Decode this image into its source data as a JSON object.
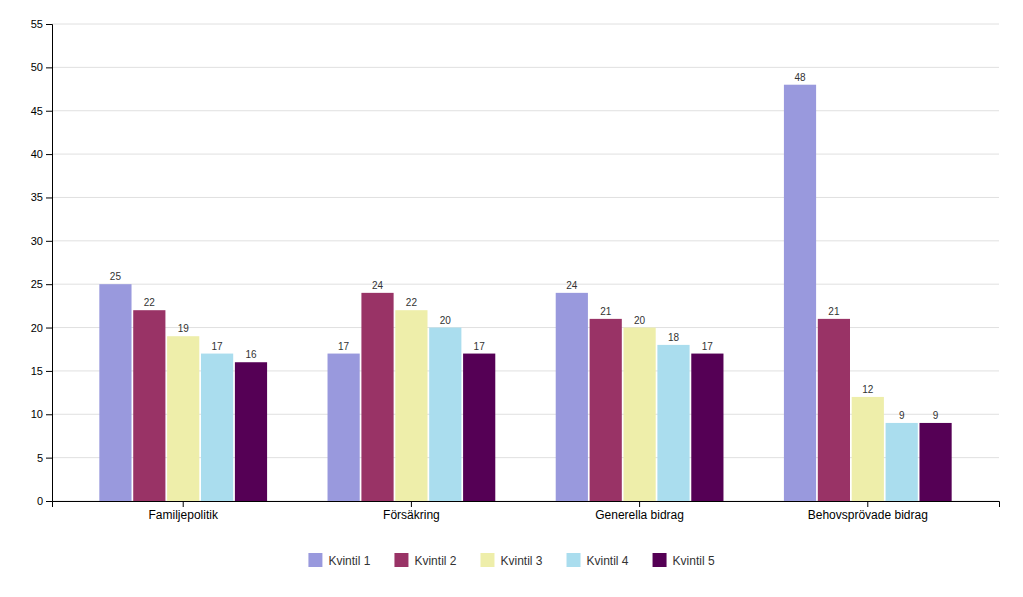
{
  "chart_data": {
    "type": "bar",
    "categories": [
      "Familjepolitik",
      "Försäkring",
      "Generella bidrag",
      "Behovsprövade bidrag"
    ],
    "series": [
      {
        "name": "Kvintil 1",
        "values": [
          25,
          17,
          24,
          48
        ],
        "color": "#9999dd"
      },
      {
        "name": "Kvintil 2",
        "values": [
          22,
          24,
          21,
          21
        ],
        "color": "#993366"
      },
      {
        "name": "Kvintil 3",
        "values": [
          19,
          22,
          20,
          12
        ],
        "color": "#eeeeaa"
      },
      {
        "name": "Kvintil 4",
        "values": [
          17,
          20,
          18,
          9
        ],
        "color": "#aaddee"
      },
      {
        "name": "Kvintil 5",
        "values": [
          16,
          17,
          17,
          9
        ],
        "color": "#550055"
      }
    ],
    "ylim": [
      0,
      55
    ],
    "yticks": [
      0,
      5,
      10,
      15,
      20,
      25,
      30,
      35,
      40,
      45,
      50,
      55
    ],
    "grid": true,
    "data_labels": true,
    "legend": "bottom"
  }
}
